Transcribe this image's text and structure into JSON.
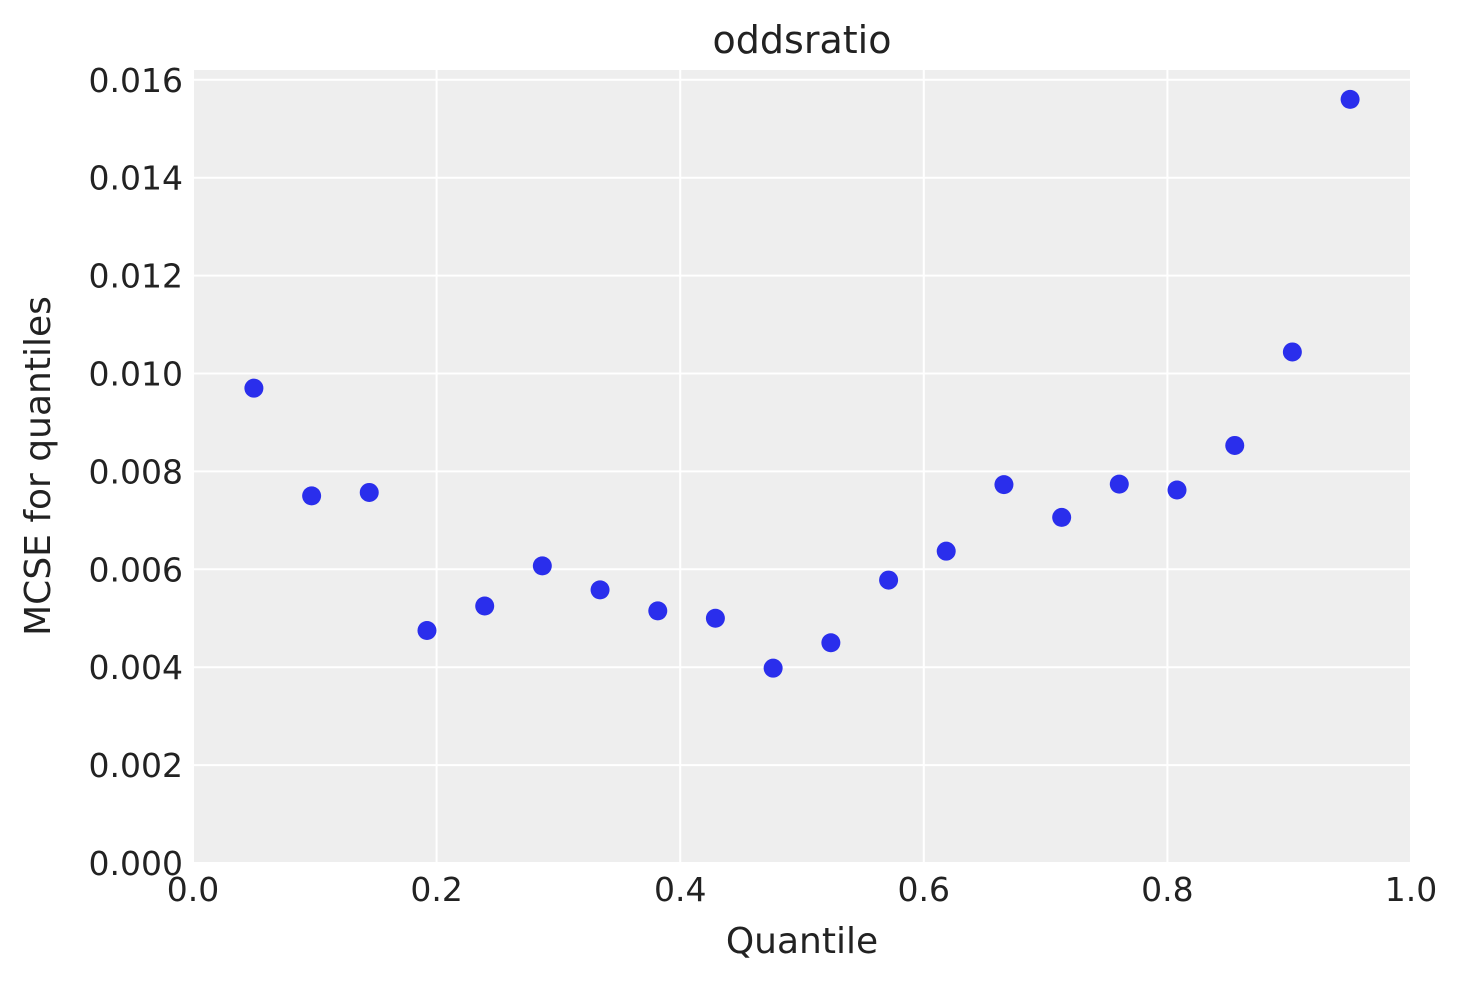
{
  "chart_data": {
    "type": "scatter",
    "title": "oddsratio",
    "xlabel": "Quantile",
    "ylabel": "MCSE for quantiles",
    "xlim": [
      0.0,
      1.0
    ],
    "ylim": [
      0.0,
      0.0162
    ],
    "x_ticks": [
      0.0,
      0.2,
      0.4,
      0.6,
      0.8,
      1.0
    ],
    "x_tick_labels": [
      "0.0",
      "0.2",
      "0.4",
      "0.6",
      "0.8",
      "1.0"
    ],
    "y_ticks": [
      0.0,
      0.002,
      0.004,
      0.006,
      0.008,
      0.01,
      0.012,
      0.014,
      0.016
    ],
    "y_tick_labels": [
      "0.000",
      "0.002",
      "0.004",
      "0.006",
      "0.008",
      "0.010",
      "0.012",
      "0.014",
      "0.016"
    ],
    "grid": true,
    "colors": {
      "background": "#eeeeee",
      "grid": "#ffffff",
      "marker": "#2a2eec"
    },
    "series": [
      {
        "x": [
          0.05,
          0.0974,
          0.1447,
          0.1921,
          0.2395,
          0.2868,
          0.3342,
          0.3816,
          0.4289,
          0.4763,
          0.5237,
          0.5711,
          0.6184,
          0.6658,
          0.7132,
          0.7605,
          0.8079,
          0.8553,
          0.9026,
          0.95
        ],
        "values": [
          0.0097,
          0.0075,
          0.00757,
          0.00475,
          0.00525,
          0.00607,
          0.00558,
          0.00515,
          0.005,
          0.00398,
          0.0045,
          0.00578,
          0.00637,
          0.00773,
          0.00706,
          0.00774,
          0.00762,
          0.00853,
          0.01044,
          0.0156
        ]
      }
    ]
  }
}
